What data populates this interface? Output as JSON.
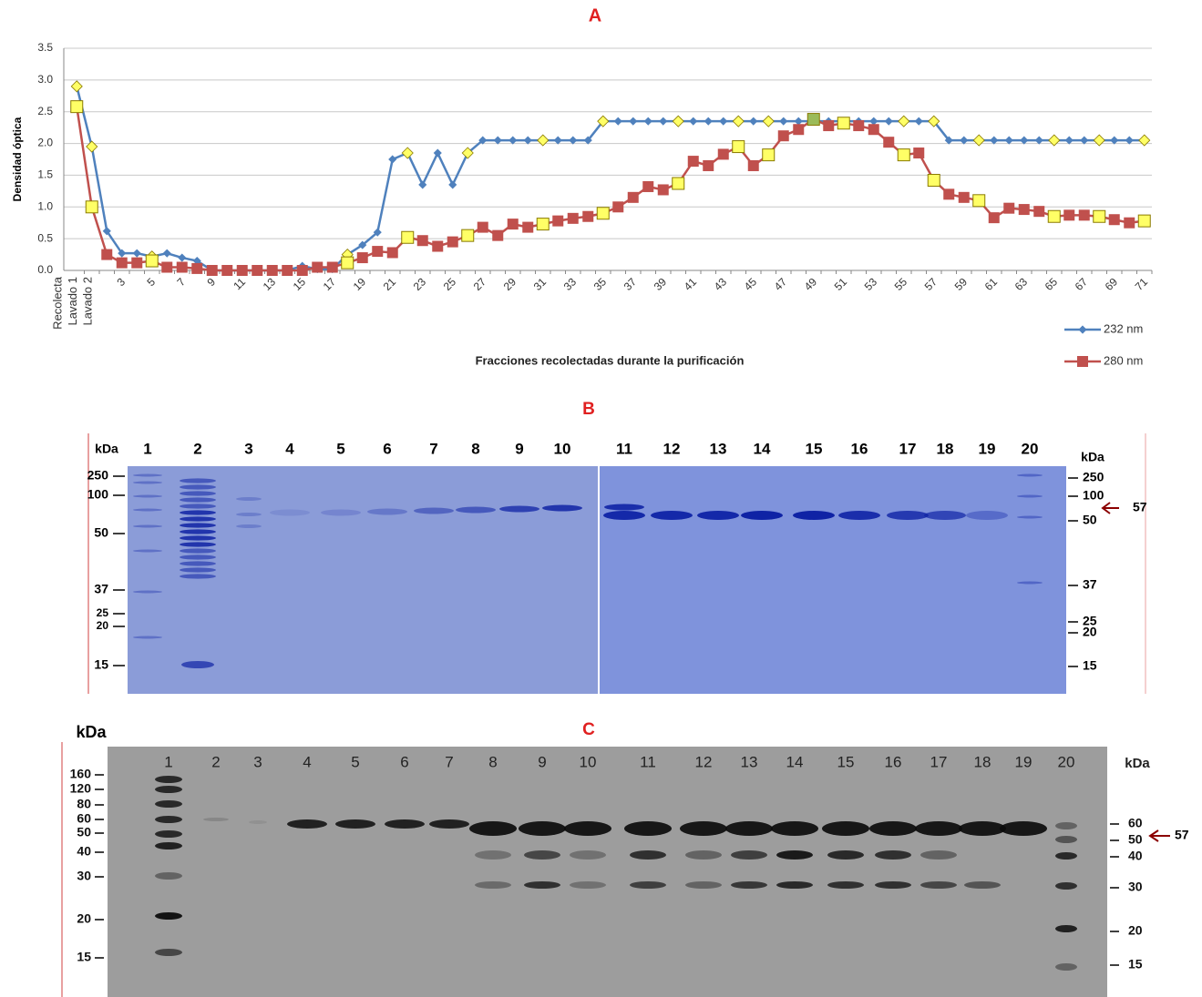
{
  "chart_data": {
    "type": "line",
    "title": "A",
    "y_label": "Densidad óptica",
    "x_label": "Fracciones recolectadas durante la purificación",
    "categories": [
      "Recolecta",
      "Lavado 1",
      "Lavado 2",
      "3",
      null,
      "5",
      null,
      "7",
      null,
      "9",
      null,
      "11",
      null,
      "13",
      null,
      "15",
      null,
      "17",
      null,
      "19",
      null,
      "21",
      null,
      "23",
      null,
      "25",
      null,
      "27",
      null,
      "29",
      null,
      "31",
      null,
      "33",
      null,
      "35",
      null,
      "37",
      null,
      "39",
      null,
      "41",
      null,
      "43",
      null,
      "45",
      null,
      "47",
      null,
      "49",
      null,
      "51",
      null,
      "53",
      null,
      "55",
      null,
      "57",
      null,
      "59",
      null,
      "61",
      null,
      "63",
      null,
      "65",
      null,
      "67",
      null,
      "69",
      null,
      "71"
    ],
    "series": [
      {
        "name": "232 nm",
        "color": "#4f81bd",
        "marker": "diamond",
        "highlight_color": "#ffff66",
        "highlight_points": [
          0,
          1,
          5,
          18,
          22,
          26,
          31,
          35,
          40,
          44,
          46,
          55,
          57,
          60,
          65,
          68,
          71
        ],
        "values": [
          2.9,
          1.95,
          0.62,
          0.27,
          0.27,
          0.22,
          0.27,
          0.2,
          0.15,
          0,
          0,
          0,
          0,
          0,
          0,
          0.07,
          0.02,
          0.02,
          0.25,
          0.4,
          0.6,
          1.75,
          1.85,
          1.35,
          1.85,
          1.35,
          1.85,
          2.05,
          2.05,
          2.05,
          2.05,
          2.05,
          2.05,
          2.05,
          2.05,
          2.35,
          2.35,
          2.35,
          2.35,
          2.35,
          2.35,
          2.35,
          2.35,
          2.35,
          2.35,
          2.35,
          2.35,
          2.35,
          2.35,
          2.35,
          2.35,
          2.35,
          2.35,
          2.35,
          2.35,
          2.35,
          2.35,
          2.35,
          2.05,
          2.05,
          2.05,
          2.05,
          2.05,
          2.05,
          2.05,
          2.05,
          2.05,
          2.05,
          2.05,
          2.05,
          2.05,
          2.05
        ]
      },
      {
        "name": "280 nm",
        "color": "#c0504d",
        "marker": "square",
        "highlight_color": "#ffff66",
        "highlight_points": [
          0,
          1,
          5,
          18,
          22,
          26,
          31,
          35,
          40,
          44,
          46,
          51,
          55,
          57,
          60,
          65,
          68,
          71
        ],
        "accent_points": [
          49
        ],
        "accent_color": "#9bbb59",
        "values": [
          2.58,
          1.0,
          0.25,
          0.12,
          0.12,
          0.15,
          0.05,
          0.05,
          0.03,
          0,
          0,
          0,
          0,
          0,
          0,
          0,
          0.05,
          0.05,
          0.12,
          0.2,
          0.3,
          0.28,
          0.52,
          0.47,
          0.38,
          0.45,
          0.55,
          0.68,
          0.55,
          0.73,
          0.68,
          0.73,
          0.78,
          0.82,
          0.85,
          0.9,
          1.0,
          1.15,
          1.32,
          1.27,
          1.37,
          1.72,
          1.65,
          1.83,
          1.95,
          1.65,
          1.82,
          2.12,
          2.22,
          2.38,
          2.28,
          2.32,
          2.28,
          2.22,
          2.02,
          1.82,
          1.85,
          1.42,
          1.2,
          1.15,
          1.1,
          0.83,
          0.98,
          0.96,
          0.93,
          0.85,
          0.87,
          0.87,
          0.85,
          0.8,
          0.75,
          0.78
        ]
      }
    ],
    "ylim": [
      0,
      3.5
    ],
    "yticks": [
      {
        "value": 0,
        "label": "0.0"
      },
      0.5,
      {
        "value": 1,
        "label": "1.0"
      },
      1.5,
      {
        "value": 2,
        "label": "2.0"
      },
      2.5,
      {
        "value": 3,
        "label": "3.0"
      },
      3.5
    ],
    "grid": true,
    "legend": "right"
  },
  "panel_b": {
    "title": "B",
    "kda_left": "kDa",
    "kda_right": "kDa",
    "lanes": [
      "1",
      "2",
      "3",
      "4",
      "5",
      "6",
      "7",
      "8",
      "9",
      "10",
      "11",
      "12",
      "13",
      "14",
      "15",
      "16",
      "17",
      "18",
      "19",
      "20"
    ],
    "markers_left": [
      "250",
      "100",
      "50",
      "37",
      "25",
      "20",
      "15"
    ],
    "markers_right": [
      "250",
      "100",
      "50",
      "37",
      "25",
      "20",
      "15"
    ],
    "arrow_label": "57"
  },
  "panel_c": {
    "title": "C",
    "kda_left": "kDa",
    "kda_right": "kDa",
    "lanes": [
      "1",
      "2",
      "3",
      "4",
      "5",
      "6",
      "7",
      "8",
      "9",
      "10",
      "11",
      "12",
      "13",
      "14",
      "15",
      "16",
      "17",
      "18",
      "19",
      "20"
    ],
    "markers_left": [
      "160",
      "120",
      "80",
      "60",
      "50",
      "40",
      "30",
      "20",
      "15"
    ],
    "markers_right": [
      "60",
      "50",
      "40",
      "30",
      "20",
      "15"
    ],
    "arrow_label": "57"
  }
}
